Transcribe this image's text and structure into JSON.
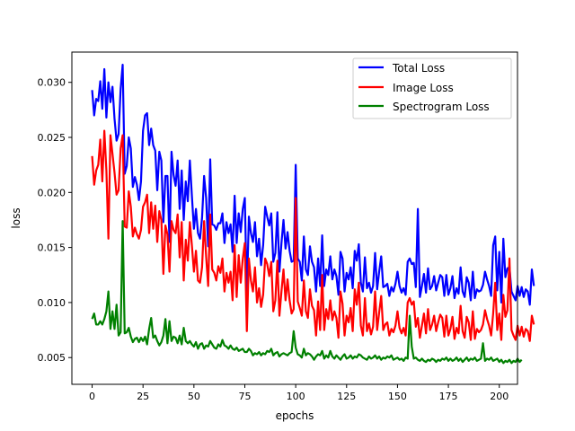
{
  "chart_data": {
    "type": "line",
    "xlabel": "epochs",
    "ylabel": "loss",
    "xlim": [
      -9.95,
      208.95
    ],
    "ylim": [
      0.00257,
      0.03275
    ],
    "xticks": [
      0,
      25,
      50,
      75,
      100,
      125,
      150,
      175,
      200
    ],
    "yticks": [
      0.005,
      0.01,
      0.015,
      0.02,
      0.025,
      0.03
    ],
    "ytick_labels": [
      "0.005",
      "0.010",
      "0.015",
      "0.020",
      "0.025",
      "0.030"
    ],
    "grid": false,
    "legend_position": "top-right",
    "series": [
      {
        "name": "Total Loss",
        "color": "#0000ff",
        "values": [
          0.0293,
          0.027,
          0.0285,
          0.0283,
          0.0301,
          0.0276,
          0.0312,
          0.0268,
          0.03,
          0.0282,
          0.0296,
          0.0267,
          0.0247,
          0.0253,
          0.0294,
          0.0316,
          0.0217,
          0.0224,
          0.025,
          0.024,
          0.0205,
          0.0214,
          0.0207,
          0.0193,
          0.021,
          0.0256,
          0.027,
          0.0272,
          0.0243,
          0.0258,
          0.0243,
          0.0238,
          0.0202,
          0.0237,
          0.0229,
          0.0173,
          0.0215,
          0.0215,
          0.0155,
          0.0237,
          0.0216,
          0.0206,
          0.0229,
          0.0185,
          0.022,
          0.0175,
          0.021,
          0.0192,
          0.0229,
          0.0197,
          0.0167,
          0.0185,
          0.0163,
          0.0158,
          0.0177,
          0.0215,
          0.0195,
          0.0151,
          0.023,
          0.0171,
          0.017,
          0.0166,
          0.0172,
          0.0172,
          0.0181,
          0.0154,
          0.0173,
          0.0163,
          0.0171,
          0.0146,
          0.0197,
          0.0154,
          0.0181,
          0.0164,
          0.0185,
          0.0195,
          0.0108,
          0.0178,
          0.0163,
          0.0155,
          0.0173,
          0.0142,
          0.0158,
          0.0134,
          0.0152,
          0.0187,
          0.0178,
          0.017,
          0.0181,
          0.0137,
          0.0145,
          0.0182,
          0.0128,
          0.0154,
          0.0175,
          0.0149,
          0.0164,
          0.0147,
          0.0137,
          0.0138,
          0.0225,
          0.014,
          0.0137,
          0.012,
          0.016,
          0.013,
          0.0125,
          0.0151,
          0.0137,
          0.0132,
          0.011,
          0.014,
          0.0115,
          0.0161,
          0.0115,
          0.013,
          0.0125,
          0.0142,
          0.0121,
          0.013,
          0.0124,
          0.0107,
          0.0146,
          0.014,
          0.011,
          0.0127,
          0.0121,
          0.0132,
          0.0113,
          0.0147,
          0.0138,
          0.0153,
          0.0118,
          0.011,
          0.0141,
          0.0113,
          0.0118,
          0.0109,
          0.0115,
          0.0145,
          0.0112,
          0.0128,
          0.0142,
          0.0114,
          0.0115,
          0.0117,
          0.0106,
          0.0114,
          0.011,
          0.0117,
          0.0128,
          0.0115,
          0.0109,
          0.0113,
          0.0107,
          0.0137,
          0.014,
          0.0135,
          0.0136,
          0.0114,
          0.0185,
          0.0105,
          0.0115,
          0.0126,
          0.0109,
          0.0131,
          0.0112,
          0.0115,
          0.0124,
          0.0111,
          0.0118,
          0.0125,
          0.0123,
          0.0106,
          0.0125,
          0.0107,
          0.0113,
          0.0124,
          0.0104,
          0.0113,
          0.0108,
          0.0132,
          0.011,
          0.0105,
          0.0123,
          0.0118,
          0.0102,
          0.0128,
          0.0104,
          0.0112,
          0.011,
          0.0111,
          0.0116,
          0.0128,
          0.0121,
          0.0115,
          0.0106,
          0.0152,
          0.016,
          0.0111,
          0.0146,
          0.01,
          0.0158,
          0.0123,
          0.0131,
          0.0132,
          0.011,
          0.0106,
          0.0102,
          0.0115,
          0.0106,
          0.0114,
          0.0105,
          0.0112,
          0.011,
          0.0098,
          0.013,
          0.0115
        ]
      },
      {
        "name": "Image Loss",
        "color": "#ff0000",
        "values": [
          0.0233,
          0.0207,
          0.022,
          0.0225,
          0.0248,
          0.021,
          0.0256,
          0.022,
          0.0158,
          0.0252,
          0.0235,
          0.0218,
          0.0198,
          0.0202,
          0.024,
          0.0252,
          0.0169,
          0.0168,
          0.0201,
          0.0187,
          0.016,
          0.0168,
          0.0162,
          0.0158,
          0.0166,
          0.0187,
          0.0191,
          0.0198,
          0.0163,
          0.0191,
          0.0167,
          0.0188,
          0.0155,
          0.0183,
          0.0175,
          0.0126,
          0.017,
          0.0162,
          0.0128,
          0.0174,
          0.0166,
          0.0163,
          0.018,
          0.0141,
          0.0173,
          0.012,
          0.0157,
          0.0138,
          0.0173,
          0.0152,
          0.0128,
          0.0147,
          0.012,
          0.0118,
          0.0132,
          0.0174,
          0.0142,
          0.0115,
          0.018,
          0.013,
          0.0127,
          0.012,
          0.0133,
          0.0127,
          0.014,
          0.011,
          0.0127,
          0.0118,
          0.0128,
          0.0102,
          0.0152,
          0.0105,
          0.0143,
          0.0118,
          0.014,
          0.0154,
          0.0074,
          0.014,
          0.012,
          0.011,
          0.0132,
          0.01,
          0.0113,
          0.0096,
          0.0107,
          0.014,
          0.0135,
          0.0124,
          0.0137,
          0.0092,
          0.0102,
          0.0138,
          0.0088,
          0.011,
          0.013,
          0.0102,
          0.0121,
          0.0102,
          0.009,
          0.0094,
          0.0195,
          0.0101,
          0.0095,
          0.0088,
          0.012,
          0.0092,
          0.0086,
          0.0112,
          0.0097,
          0.0093,
          0.007,
          0.0101,
          0.0075,
          0.0125,
          0.0075,
          0.0094,
          0.0085,
          0.0102,
          0.0084,
          0.0092,
          0.0086,
          0.0068,
          0.011,
          0.0099,
          0.007,
          0.0088,
          0.0082,
          0.0095,
          0.0074,
          0.0112,
          0.0098,
          0.0118,
          0.0079,
          0.007,
          0.0104,
          0.0074,
          0.0081,
          0.0071,
          0.0078,
          0.011,
          0.0075,
          0.0091,
          0.0106,
          0.0075,
          0.008,
          0.0082,
          0.007,
          0.0076,
          0.0073,
          0.0079,
          0.0092,
          0.0077,
          0.0072,
          0.0077,
          0.007,
          0.01,
          0.0104,
          0.0098,
          0.0101,
          0.0078,
          0.0086,
          0.0068,
          0.0079,
          0.009,
          0.0072,
          0.0094,
          0.0075,
          0.008,
          0.0088,
          0.0074,
          0.0082,
          0.0089,
          0.0086,
          0.0069,
          0.0088,
          0.007,
          0.0076,
          0.0087,
          0.0067,
          0.0077,
          0.0072,
          0.0097,
          0.0074,
          0.0068,
          0.0087,
          0.0082,
          0.0066,
          0.0092,
          0.0067,
          0.0076,
          0.0073,
          0.0075,
          0.008,
          0.0093,
          0.0085,
          0.0079,
          0.007,
          0.009,
          0.0118,
          0.0075,
          0.009,
          0.0066,
          0.0107,
          0.0087,
          0.0093,
          0.014,
          0.0075,
          0.007,
          0.0066,
          0.0079,
          0.007,
          0.0078,
          0.0069,
          0.0076,
          0.0074,
          0.0065,
          0.0088,
          0.008
        ]
      },
      {
        "name": "Spectrogram Loss",
        "color": "#008000",
        "values": [
          0.0085,
          0.009,
          0.008,
          0.008,
          0.0083,
          0.008,
          0.0085,
          0.0092,
          0.011,
          0.0076,
          0.0092,
          0.0076,
          0.0098,
          0.007,
          0.0073,
          0.0174,
          0.0072,
          0.0073,
          0.0077,
          0.0069,
          0.0064,
          0.0067,
          0.0068,
          0.0064,
          0.0068,
          0.0065,
          0.0069,
          0.0062,
          0.0076,
          0.0086,
          0.0068,
          0.007,
          0.0065,
          0.0061,
          0.0064,
          0.007,
          0.0085,
          0.0063,
          0.0083,
          0.0065,
          0.0069,
          0.0068,
          0.0063,
          0.007,
          0.0062,
          0.0077,
          0.0065,
          0.0063,
          0.0065,
          0.0062,
          0.006,
          0.0064,
          0.0058,
          0.0062,
          0.0063,
          0.0058,
          0.0061,
          0.006,
          0.0065,
          0.0062,
          0.0059,
          0.0058,
          0.0062,
          0.006,
          0.0066,
          0.0061,
          0.006,
          0.0058,
          0.0061,
          0.0058,
          0.0057,
          0.0059,
          0.0056,
          0.0057,
          0.0058,
          0.0055,
          0.0055,
          0.0058,
          0.0056,
          0.0052,
          0.0054,
          0.0053,
          0.0055,
          0.0052,
          0.0054,
          0.0053,
          0.0056,
          0.0055,
          0.0058,
          0.0052,
          0.0054,
          0.0055,
          0.0051,
          0.0053,
          0.0054,
          0.0053,
          0.0052,
          0.0054,
          0.0055,
          0.0074,
          0.0059,
          0.0053,
          0.0052,
          0.005,
          0.0058,
          0.0052,
          0.0054,
          0.0053,
          0.0051,
          0.0048,
          0.0051,
          0.0053,
          0.0052,
          0.0056,
          0.0049,
          0.0052,
          0.005,
          0.0056,
          0.0051,
          0.0049,
          0.0052,
          0.005,
          0.0048,
          0.0051,
          0.0053,
          0.0049,
          0.005,
          0.0052,
          0.0049,
          0.0051,
          0.005,
          0.0053,
          0.0052,
          0.005,
          0.0049,
          0.0048,
          0.0051,
          0.0049,
          0.005,
          0.0052,
          0.0049,
          0.0051,
          0.0048,
          0.005,
          0.0049,
          0.0051,
          0.005,
          0.0052,
          0.0048,
          0.0049,
          0.005,
          0.0048,
          0.0049,
          0.0047,
          0.005,
          0.0049,
          0.0088,
          0.006,
          0.0049,
          0.005,
          0.0048,
          0.0047,
          0.0049,
          0.0047,
          0.0046,
          0.0048,
          0.0047,
          0.0049,
          0.0048,
          0.0046,
          0.0048,
          0.0047,
          0.0049,
          0.0048,
          0.005,
          0.0047,
          0.0049,
          0.0047,
          0.0048,
          0.005,
          0.0047,
          0.0049,
          0.0046,
          0.0048,
          0.005,
          0.0047,
          0.0049,
          0.0048,
          0.005,
          0.0047,
          0.0048,
          0.0049,
          0.0063,
          0.0047,
          0.0049,
          0.0048,
          0.005,
          0.0047,
          0.0048,
          0.0049,
          0.0046,
          0.0048,
          0.0045,
          0.0047,
          0.0046,
          0.0048,
          0.0045,
          0.0047,
          0.0046,
          0.0049,
          0.0046,
          0.0048
        ]
      }
    ]
  }
}
